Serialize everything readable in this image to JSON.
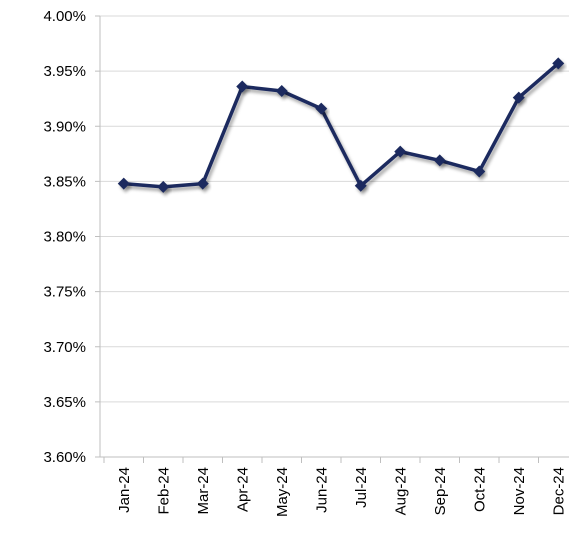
{
  "chart_data": {
    "type": "line",
    "categories": [
      "Jan-24",
      "Feb-24",
      "Mar-24",
      "Apr-24",
      "May-24",
      "Jun-24",
      "Jul-24",
      "Aug-24",
      "Sep-24",
      "Oct-24",
      "Nov-24",
      "Dec-24"
    ],
    "series": [
      {
        "color": "#1b2a5e",
        "values": [
          3.848,
          3.845,
          3.848,
          3.936,
          3.932,
          3.916,
          3.846,
          3.877,
          3.869,
          3.859,
          3.926,
          3.957
        ]
      }
    ],
    "ylim": [
      3.6,
      4.0
    ],
    "yticks": [
      {
        "value": 3.6,
        "label": "3.60%"
      },
      {
        "value": 3.65,
        "label": "3.65%"
      },
      {
        "value": 3.7,
        "label": "3.70%"
      },
      {
        "value": 3.75,
        "label": "3.75%"
      },
      {
        "value": 3.8,
        "label": "3.80%"
      },
      {
        "value": 3.85,
        "label": "3.85%"
      },
      {
        "value": 3.9,
        "label": "3.90%"
      },
      {
        "value": 3.95,
        "label": "3.95%"
      },
      {
        "value": 4.0,
        "label": "4.00%"
      }
    ],
    "grid": true
  }
}
